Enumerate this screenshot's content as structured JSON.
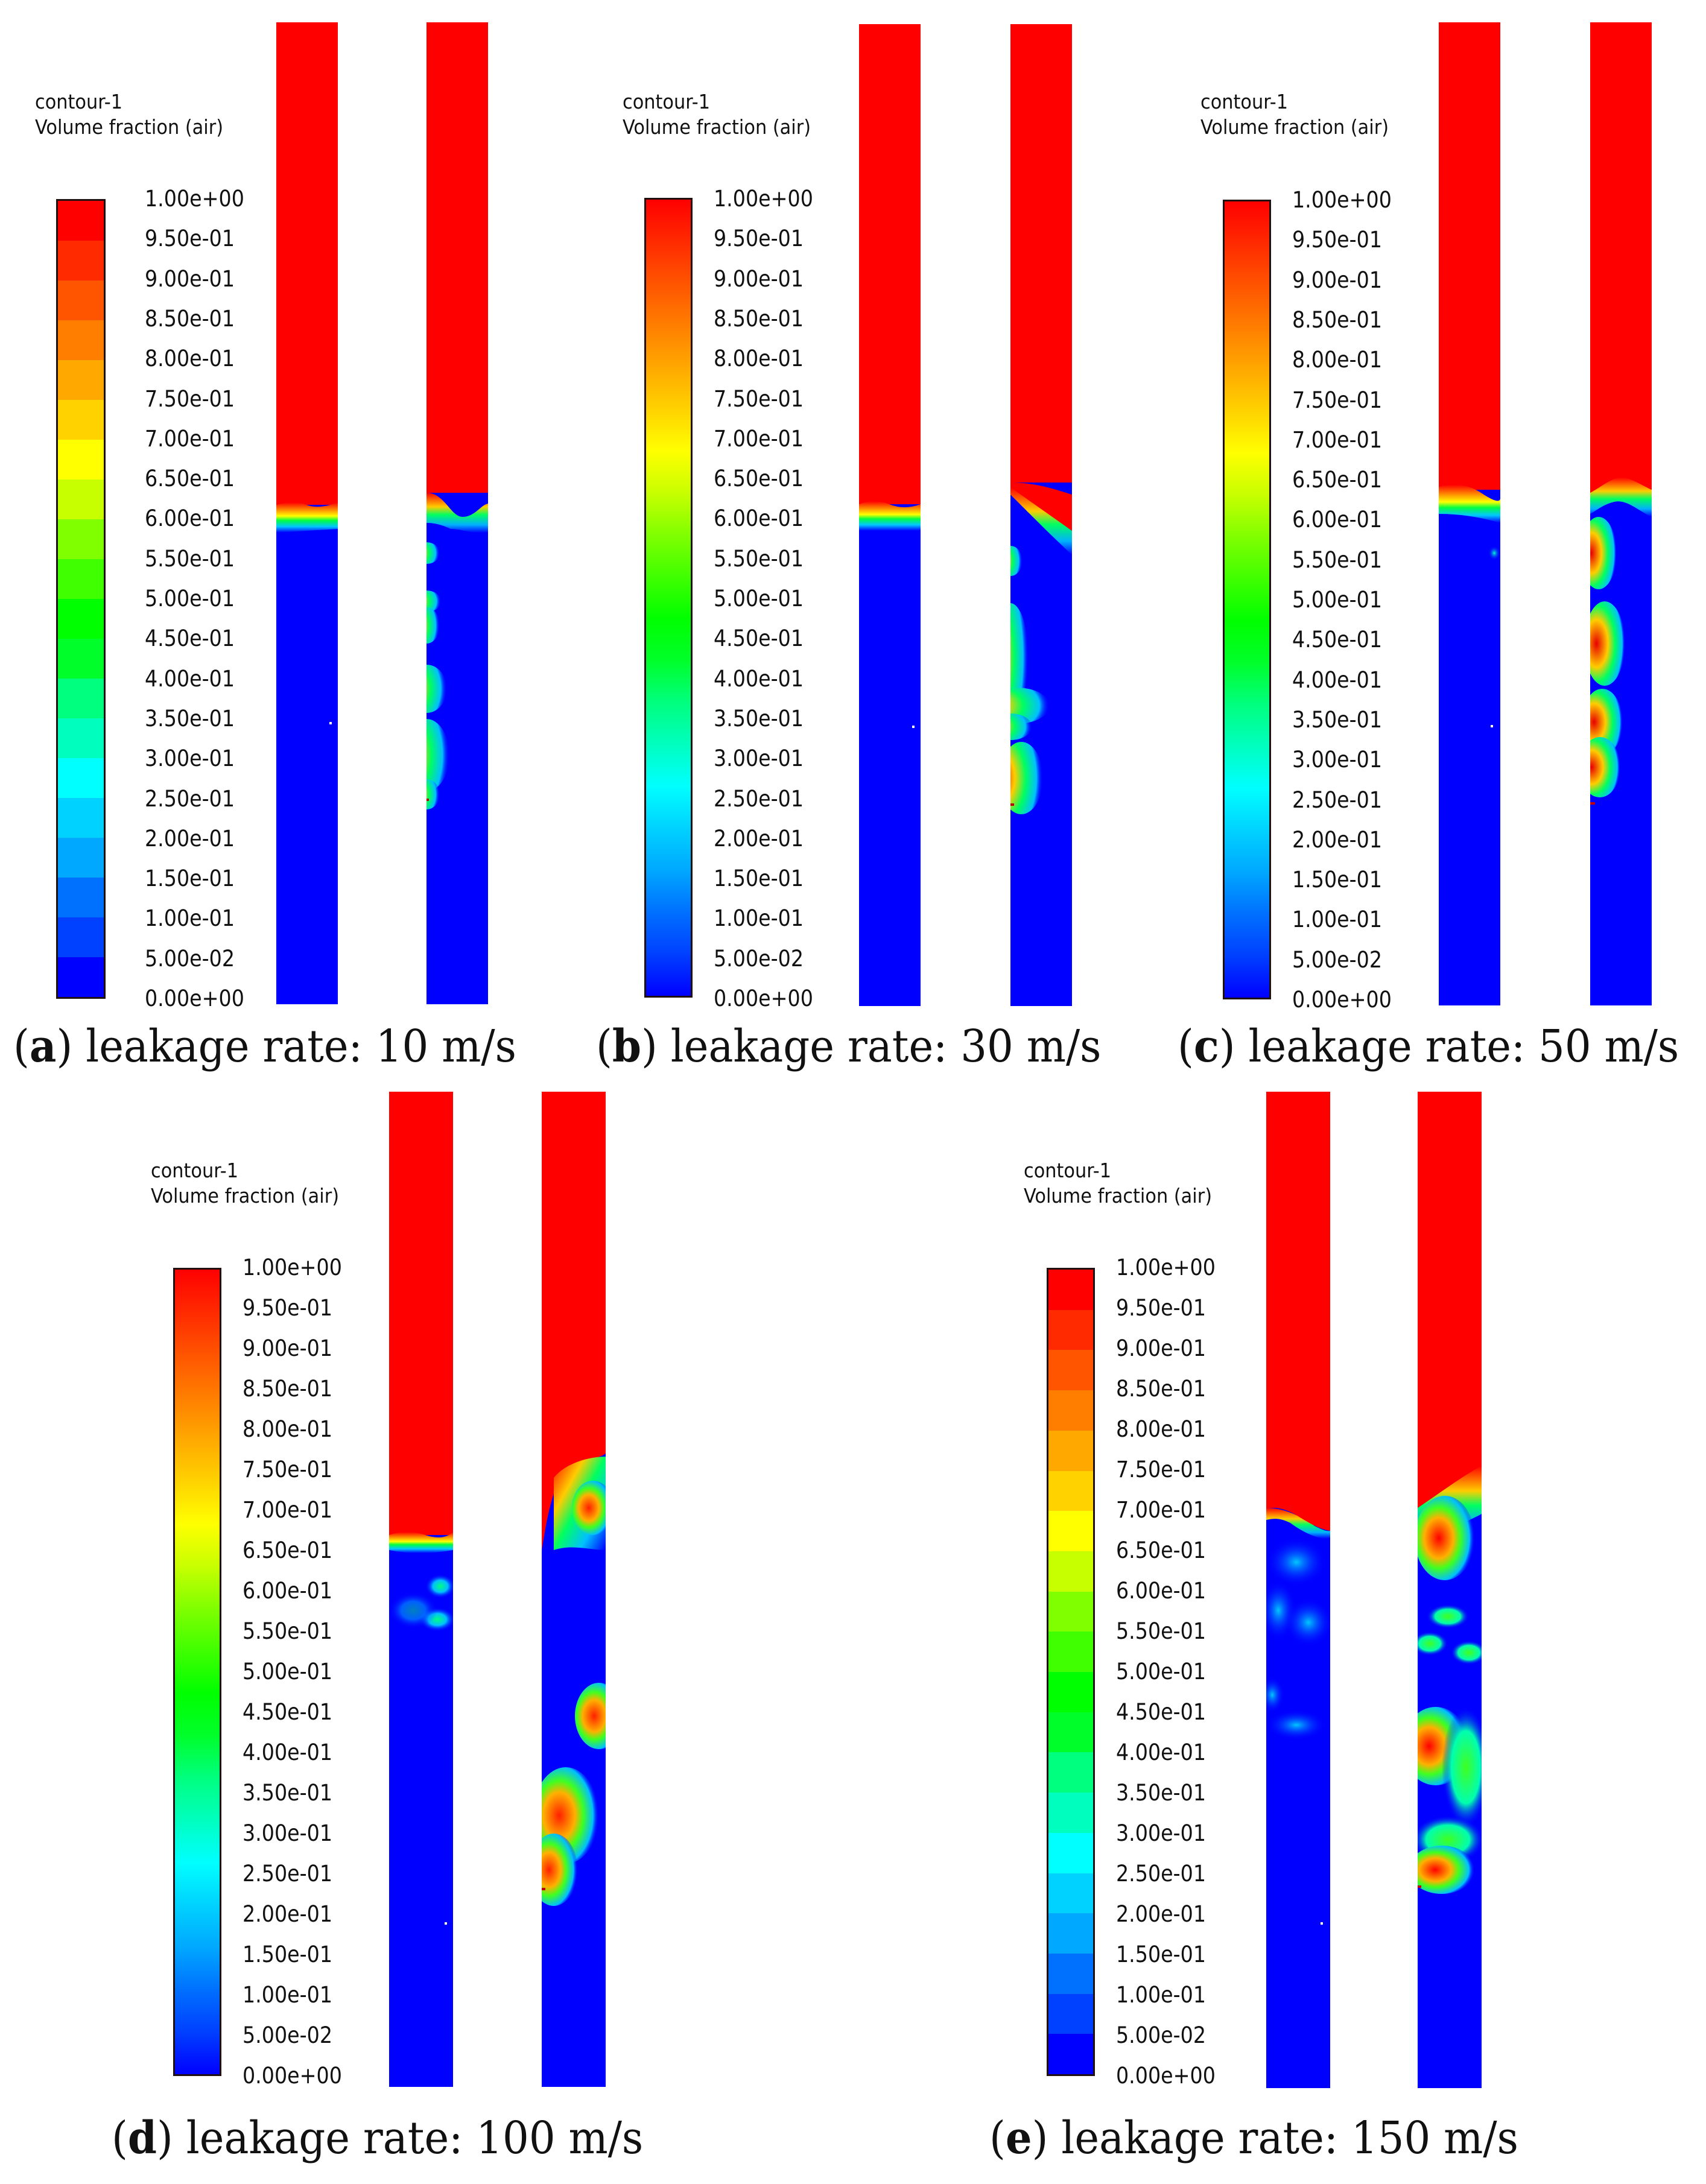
{
  "legend": {
    "title_line1": "contour-1",
    "title_line2": "Volume fraction (air)",
    "ticks": [
      "1.00e+00",
      "9.50e-01",
      "9.00e-01",
      "8.50e-01",
      "8.00e-01",
      "7.50e-01",
      "7.00e-01",
      "6.50e-01",
      "6.00e-01",
      "5.50e-01",
      "5.00e-01",
      "4.50e-01",
      "4.00e-01",
      "3.50e-01",
      "3.00e-01",
      "2.50e-01",
      "2.00e-01",
      "1.50e-01",
      "1.00e-01",
      "5.00e-02",
      "0.00e+00"
    ],
    "band_colors": [
      "#ff0000",
      "#ff2a00",
      "#ff5400",
      "#ff7e00",
      "#ffa800",
      "#ffd200",
      "#ffff00",
      "#c8ff00",
      "#80ff00",
      "#40ff00",
      "#00ff00",
      "#00ff2a",
      "#00ff7e",
      "#00ffbe",
      "#00ffff",
      "#00d2ff",
      "#00a8ff",
      "#0070ff",
      "#0040ff",
      "#0000ff"
    ],
    "colormap": "rainbow (blue 0 → red 1)"
  },
  "colors": {
    "air": "#ff0000",
    "water": "#0000ff"
  },
  "panels": [
    {
      "id": "a",
      "label": "a",
      "caption": "leakage rate: 10 m/s",
      "legend_style": "banded"
    },
    {
      "id": "b",
      "label": "b",
      "caption": "leakage rate: 30 m/s",
      "legend_style": "smooth"
    },
    {
      "id": "c",
      "label": "c",
      "caption": "leakage rate: 50 m/s",
      "legend_style": "smooth"
    },
    {
      "id": "d",
      "label": "d",
      "caption": "leakage rate: 100 m/s",
      "legend_style": "smooth"
    },
    {
      "id": "e",
      "label": "e",
      "caption": "leakage rate: 150 m/s",
      "legend_style": "banded"
    }
  ],
  "caption_parts": {
    "open": "(",
    "close": ") "
  }
}
